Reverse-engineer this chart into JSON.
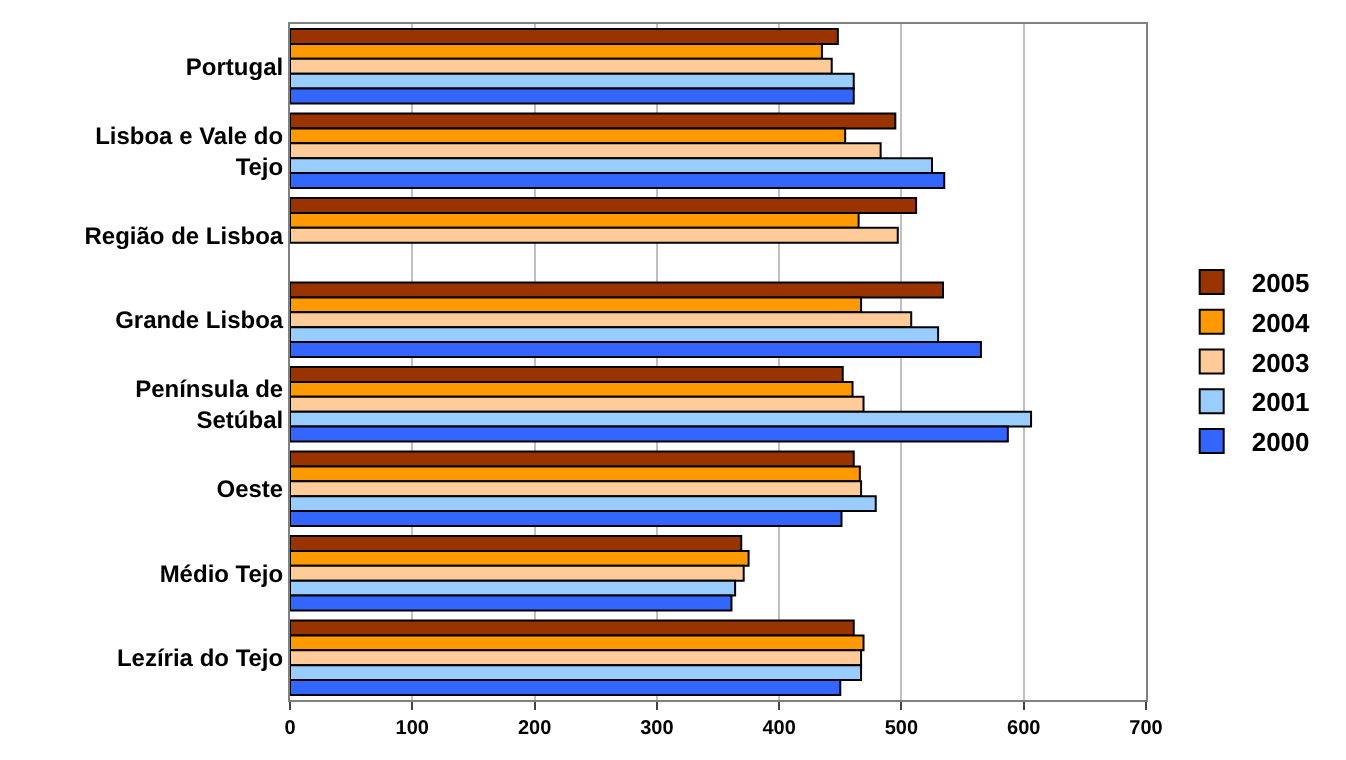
{
  "chart_data": {
    "type": "bar",
    "orientation": "horizontal",
    "categories": [
      "Portugal",
      "Lisboa e Vale do Tejo",
      "Região de Lisboa",
      "Grande Lisboa",
      "Península de Setúbal",
      "Oeste",
      "Médio Tejo",
      "Lezíria do Tejo"
    ],
    "series": [
      {
        "name": "2005",
        "color": "#993300",
        "values": [
          448,
          495,
          512,
          534,
          452,
          461,
          369,
          461
        ]
      },
      {
        "name": "2004",
        "color": "#ff9900",
        "values": [
          435,
          454,
          465,
          467,
          460,
          466,
          375,
          469
        ]
      },
      {
        "name": "2003",
        "color": "#ffcc99",
        "values": [
          443,
          483,
          497,
          508,
          469,
          467,
          371,
          467
        ]
      },
      {
        "name": "2001",
        "color": "#99ccff",
        "values": [
          461,
          525,
          null,
          530,
          606,
          479,
          364,
          467
        ]
      },
      {
        "name": "2000",
        "color": "#3366ff",
        "values": [
          461,
          535,
          null,
          565,
          587,
          451,
          361,
          450
        ]
      }
    ],
    "xlim": [
      0,
      700
    ],
    "xticks": [
      0,
      100,
      200,
      300,
      400,
      500,
      600,
      700
    ],
    "grid": "x",
    "legend": "right"
  }
}
